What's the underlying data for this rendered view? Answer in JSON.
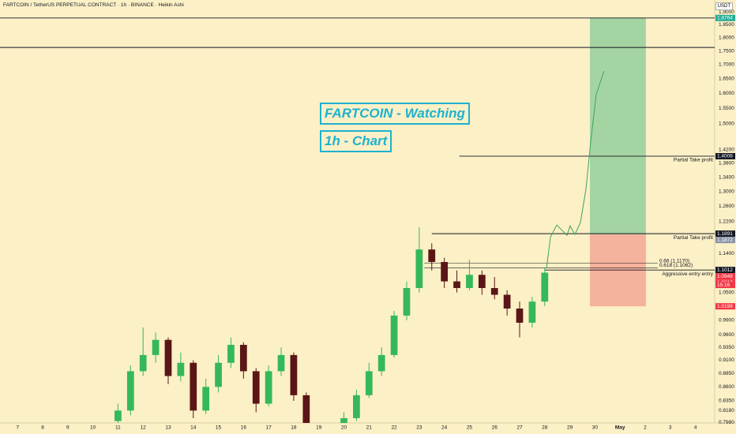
{
  "header": {
    "symbol_title": "FARTCOIN / TetherUS PERPETUAL CONTRACT · 1h · BINANCE · Heikin Ashi",
    "currency": "USDT"
  },
  "chart_data": {
    "type": "candlestick",
    "log_scale": true,
    "grid": false,
    "background": "#fcf0c6",
    "up_color": "#35b85a",
    "down_color": "#5a1616",
    "ylim": [
      0.785,
      1.92
    ],
    "yticks": [
      {
        "value": 1.9,
        "label": "1.9000"
      },
      {
        "value": 1.85,
        "label": "1.8500"
      },
      {
        "value": 1.8,
        "label": "1.8000"
      },
      {
        "value": 1.75,
        "label": "1.7500"
      },
      {
        "value": 1.7,
        "label": "1.7000"
      },
      {
        "value": 1.65,
        "label": "1.6500"
      },
      {
        "value": 1.6,
        "label": "1.6000"
      },
      {
        "value": 1.55,
        "label": "1.5500"
      },
      {
        "value": 1.5,
        "label": "1.5000"
      },
      {
        "value": 1.42,
        "label": "1.4200"
      },
      {
        "value": 1.38,
        "label": "1.3800"
      },
      {
        "value": 1.34,
        "label": "1.3400"
      },
      {
        "value": 1.3,
        "label": "1.3000"
      },
      {
        "value": 1.26,
        "label": "1.2600"
      },
      {
        "value": 1.22,
        "label": "1.2200"
      },
      {
        "value": 1.14,
        "label": "1.1400"
      },
      {
        "value": 1.05,
        "label": "1.0500"
      },
      {
        "value": 0.99,
        "label": "0.9900"
      },
      {
        "value": 0.96,
        "label": "0.9600"
      },
      {
        "value": 0.935,
        "label": "0.9350"
      },
      {
        "value": 0.91,
        "label": "0.9100"
      },
      {
        "value": 0.885,
        "label": "0.8850"
      },
      {
        "value": 0.86,
        "label": "0.8600"
      },
      {
        "value": 0.835,
        "label": "0.8350"
      },
      {
        "value": 0.818,
        "label": "0.8180"
      },
      {
        "value": 0.798,
        "label": "0.7980"
      }
    ],
    "xlim": [
      6.3,
      34.77
    ],
    "xticks": [
      7,
      8,
      9,
      10,
      11,
      12,
      13,
      14,
      15,
      16,
      17,
      18,
      19,
      20,
      21,
      22,
      23,
      24,
      25,
      26,
      27,
      28,
      29,
      30,
      {
        "value": 31,
        "label": "May"
      },
      {
        "value": 32,
        "label": "2"
      },
      {
        "value": 33,
        "label": "3"
      },
      {
        "value": 34,
        "label": "4"
      }
    ],
    "candles": {
      "x": [
        11,
        11.5,
        12,
        12.5,
        13,
        13.5,
        14,
        14.5,
        15,
        15.5,
        16,
        16.5,
        17,
        17.5,
        18,
        18.5,
        20,
        20.5,
        21,
        21.5,
        22,
        22.5,
        23,
        23.5,
        24,
        24.5,
        25,
        25.5,
        26,
        26.5,
        27,
        27.5,
        28
      ],
      "open": [
        0.8,
        0.818,
        0.889,
        0.92,
        0.95,
        0.88,
        0.905,
        0.818,
        0.86,
        0.905,
        0.94,
        0.889,
        0.83,
        0.889,
        0.92,
        0.845,
        0.79,
        0.805,
        0.845,
        0.889,
        0.92,
        1.0,
        1.06,
        1.15,
        1.12,
        1.075,
        1.06,
        1.09,
        1.06,
        1.045,
        1.015,
        0.985,
        1.03
      ],
      "high": [
        0.83,
        0.9,
        0.975,
        0.965,
        0.955,
        0.925,
        0.91,
        0.875,
        0.92,
        0.955,
        0.945,
        0.895,
        0.9,
        0.935,
        0.925,
        0.85,
        0.815,
        0.855,
        0.905,
        0.935,
        1.01,
        1.075,
        1.205,
        1.165,
        1.13,
        1.1,
        1.125,
        1.1,
        1.085,
        1.055,
        1.03,
        1.04,
        1.105
      ],
      "low": [
        0.795,
        0.81,
        0.88,
        0.905,
        0.865,
        0.87,
        0.805,
        0.812,
        0.85,
        0.895,
        0.875,
        0.815,
        0.825,
        0.88,
        0.835,
        0.78,
        0.78,
        0.8,
        0.84,
        0.88,
        0.915,
        0.99,
        1.05,
        1.1,
        1.06,
        1.05,
        1.055,
        1.045,
        1.035,
        1.0,
        0.955,
        0.975,
        1.02
      ],
      "close": [
        0.818,
        0.889,
        0.92,
        0.95,
        0.88,
        0.905,
        0.818,
        0.86,
        0.905,
        0.94,
        0.889,
        0.83,
        0.889,
        0.92,
        0.845,
        0.79,
        0.805,
        0.845,
        0.889,
        0.92,
        1.0,
        1.06,
        1.15,
        1.12,
        1.075,
        1.06,
        1.09,
        1.06,
        1.045,
        1.015,
        0.985,
        1.03,
        1.095
      ]
    },
    "projection": {
      "color": "#3aa657",
      "x": [
        28.07,
        28.23,
        28.48,
        28.7,
        28.89,
        29.01,
        29.2,
        29.42,
        29.64,
        29.83,
        30.05,
        30.36
      ],
      "values": [
        1.105,
        1.181,
        1.211,
        1.197,
        1.185,
        1.209,
        1.187,
        1.217,
        1.305,
        1.443,
        1.596,
        1.677
      ]
    },
    "position": {
      "x": [
        29.8,
        32.03
      ],
      "entry": 1.1872,
      "target": 1.8764,
      "stop": 1.0198,
      "profit_color": "#a5d4a3",
      "loss_color": "#f5b29c"
    },
    "levels": [
      {
        "value": 1.8764
      },
      {
        "value": 1.763
      },
      {
        "value": 1.4008,
        "from": 24.6,
        "label": "Partial Take profit"
      },
      {
        "value": 1.1891,
        "from": 23.5,
        "label": "Partial Take profit"
      },
      {
        "value": 1.117,
        "from": 23.2,
        "to": 32.5,
        "label": "0.66 (1.1170)"
      },
      {
        "value": 1.1062,
        "from": 23.2,
        "to": 32.5,
        "label": "0.618 (1.1062)"
      },
      {
        "value": 1.1012,
        "from": 28.0,
        "label": "Aggressive entry entry"
      }
    ],
    "price_tags": [
      {
        "value": 1.8764,
        "color": "#22ab94"
      },
      {
        "value": 1.4008,
        "color": "#131722"
      },
      {
        "value": 1.1891,
        "color": "#131722"
      },
      {
        "value": 1.1872,
        "color": "#8a94a6"
      },
      {
        "value": 1.1012,
        "color": "#131722"
      },
      {
        "value": 1.0948,
        "color": "#f23645"
      },
      {
        "value": 1.0813,
        "color": "#f23645"
      },
      {
        "value": 1.0198,
        "color": "#f23645"
      }
    ],
    "countdown": "15:16",
    "annotations": [
      "FARTCOIN - Watching",
      "1h - Chart"
    ]
  }
}
